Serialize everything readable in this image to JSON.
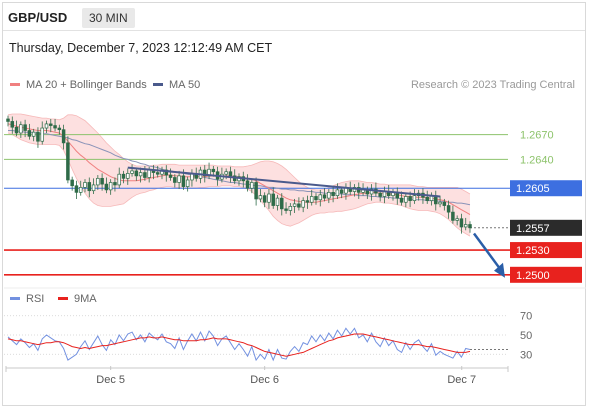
{
  "header": {
    "symbol": "GBP/USD",
    "timeframe": "30 MIN",
    "datetime": "Thursday, December 7, 2023 12:12:49 AM CET",
    "credit": "Research © 2023 Trading Central"
  },
  "colors": {
    "ma20": "#f08080",
    "bands_fill": "#fde0e0",
    "ma50": "#4a5a8c",
    "candle": "#2e6b48",
    "resistance": "#8dc36b",
    "pivot": "#3d6fe0",
    "support": "#e8221e",
    "rsi": "#7391e0",
    "rsi_ma": "#e8221e",
    "arrow": "#2a5ea8"
  },
  "chart_data": [
    {
      "type": "candlestick",
      "legend": [
        {
          "name": "MA 20 + Bollinger Bands",
          "color": "#f08080"
        },
        {
          "name": "MA 50",
          "color": "#4a5a8c"
        }
      ],
      "x_ticks": [
        "Dec 5",
        "Dec 6",
        "Dec 7"
      ],
      "ylim": [
        1.2484,
        1.2712
      ],
      "levels": [
        {
          "value": 1.267,
          "label": "1.2670",
          "kind": "resistance"
        },
        {
          "value": 1.264,
          "label": "1.2640",
          "kind": "resistance"
        },
        {
          "value": 1.2605,
          "label": "1.2605",
          "kind": "pivot"
        },
        {
          "value": 1.2557,
          "label": "1.2557",
          "kind": "last"
        },
        {
          "value": 1.253,
          "label": "1.2530",
          "kind": "support"
        },
        {
          "value": 1.25,
          "label": "1.2500",
          "kind": "support"
        }
      ],
      "close": [
        1.2686,
        1.2679,
        1.2672,
        1.2682,
        1.2675,
        1.2668,
        1.2673,
        1.2662,
        1.2678,
        1.2683,
        1.2681,
        1.2678,
        1.2676,
        1.266,
        1.2615,
        1.2608,
        1.26,
        1.2606,
        1.2612,
        1.2602,
        1.2609,
        1.2617,
        1.261,
        1.2603,
        1.2612,
        1.2609,
        1.2622,
        1.2617,
        1.2623,
        1.2626,
        1.262,
        1.2624,
        1.2618,
        1.2627,
        1.2624,
        1.2622,
        1.2627,
        1.2621,
        1.2618,
        1.2612,
        1.262,
        1.2607,
        1.2615,
        1.2622,
        1.2617,
        1.2627,
        1.262,
        1.2628,
        1.2625,
        1.2616,
        1.2622,
        1.2625,
        1.262,
        1.2614,
        1.2619,
        1.2614,
        1.2605,
        1.2612,
        1.2592,
        1.2596,
        1.2588,
        1.2598,
        1.2584,
        1.2593,
        1.258,
        1.2578,
        1.2583,
        1.2586,
        1.2582,
        1.259,
        1.2588,
        1.2595,
        1.2591,
        1.2597,
        1.2593,
        1.26,
        1.2596,
        1.2603,
        1.2599,
        1.2605,
        1.2601,
        1.2606,
        1.26,
        1.2603,
        1.2598,
        1.2604,
        1.2599,
        1.2595,
        1.2601,
        1.2596,
        1.26,
        1.2593,
        1.2588,
        1.2595,
        1.259,
        1.2596,
        1.2599,
        1.2594,
        1.259,
        1.2596,
        1.2586,
        1.2588,
        1.2584,
        1.2576,
        1.2566,
        1.2568,
        1.2558,
        1.2561,
        1.2557
      ],
      "ma20": [
        1.2683,
        1.2682,
        1.268,
        1.2679,
        1.2678,
        1.2677,
        1.2676,
        1.2675,
        1.2675,
        1.2675,
        1.2674,
        1.2673,
        1.2672,
        1.2668,
        1.2662,
        1.2656,
        1.265,
        1.2645,
        1.2641,
        1.2636,
        1.2632,
        1.2628,
        1.2625,
        1.2622,
        1.2619,
        1.2617,
        1.2615,
        1.2614,
        1.2614,
        1.2614,
        1.2614,
        1.2615,
        1.2616,
        1.2617,
        1.2618,
        1.2619,
        1.262,
        1.2621,
        1.2621,
        1.262,
        1.262,
        1.2619,
        1.2619,
        1.2619,
        1.2619,
        1.2619,
        1.2619,
        1.262,
        1.262,
        1.262,
        1.262,
        1.262,
        1.262,
        1.2619,
        1.2619,
        1.2618,
        1.2617,
        1.2616,
        1.2614,
        1.2611,
        1.2608,
        1.2605,
        1.2602,
        1.2599,
        1.2596,
        1.2593,
        1.2591,
        1.259,
        1.2589,
        1.2588,
        1.2588,
        1.2588,
        1.2588,
        1.2589,
        1.259,
        1.2591,
        1.2592,
        1.2593,
        1.2594,
        1.2595,
        1.2596,
        1.2597,
        1.2598,
        1.2599,
        1.2599,
        1.26,
        1.26,
        1.2599,
        1.2599,
        1.2598,
        1.2598,
        1.2597,
        1.2596,
        1.2595,
        1.2595,
        1.2594,
        1.2594,
        1.2594,
        1.2593,
        1.2593,
        1.2592,
        1.2591,
        1.259,
        1.2588,
        1.2585,
        1.2582,
        1.2579,
        1.2576,
        1.2573
      ],
      "upper_band": [
        1.2694,
        1.2695,
        1.2695,
        1.2695,
        1.2694,
        1.2693,
        1.2692,
        1.2691,
        1.269,
        1.269,
        1.2689,
        1.2689,
        1.2688,
        1.269,
        1.2694,
        1.2694,
        1.2693,
        1.269,
        1.2687,
        1.2682,
        1.2677,
        1.2672,
        1.2666,
        1.266,
        1.2655,
        1.265,
        1.2646,
        1.2641,
        1.2637,
        1.2634,
        1.2632,
        1.2632,
        1.2632,
        1.2632,
        1.2633,
        1.2633,
        1.2634,
        1.2634,
        1.2634,
        1.2634,
        1.2633,
        1.2633,
        1.2633,
        1.2633,
        1.2633,
        1.2633,
        1.2633,
        1.2633,
        1.2633,
        1.2632,
        1.2632,
        1.2632,
        1.2632,
        1.2631,
        1.2631,
        1.2631,
        1.2632,
        1.2633,
        1.2635,
        1.2637,
        1.2638,
        1.2638,
        1.2637,
        1.2635,
        1.2632,
        1.2628,
        1.2623,
        1.2618,
        1.2613,
        1.2609,
        1.2606,
        1.2604,
        1.2603,
        1.2603,
        1.2604,
        1.2606,
        1.2608,
        1.261,
        1.2612,
        1.2613,
        1.2614,
        1.2614,
        1.2614,
        1.2613,
        1.2612,
        1.2612,
        1.2611,
        1.261,
        1.261,
        1.2609,
        1.2609,
        1.2609,
        1.2609,
        1.2609,
        1.2609,
        1.2608,
        1.2607,
        1.2607,
        1.2606,
        1.2606,
        1.2606,
        1.2606,
        1.2606,
        1.2606,
        1.2606,
        1.2606,
        1.2604,
        1.2601,
        1.2598
      ],
      "lower_band": [
        1.2672,
        1.267,
        1.2667,
        1.2664,
        1.2662,
        1.266,
        1.2659,
        1.2658,
        1.2658,
        1.2658,
        1.2658,
        1.2658,
        1.2657,
        1.2651,
        1.264,
        1.2628,
        1.2617,
        1.2608,
        1.2599,
        1.2592,
        1.2587,
        1.2584,
        1.2583,
        1.2583,
        1.2583,
        1.2584,
        1.2585,
        1.2586,
        1.259,
        1.2594,
        1.2597,
        1.2599,
        1.26,
        1.2602,
        1.2603,
        1.2605,
        1.2606,
        1.2607,
        1.2607,
        1.2606,
        1.2606,
        1.2605,
        1.2605,
        1.2605,
        1.2605,
        1.2606,
        1.2606,
        1.2607,
        1.2607,
        1.2607,
        1.2608,
        1.2608,
        1.2608,
        1.2607,
        1.2607,
        1.2606,
        1.2604,
        1.2601,
        1.2596,
        1.259,
        1.2584,
        1.2578,
        1.2571,
        1.2566,
        1.2562,
        1.256,
        1.2559,
        1.2561,
        1.2563,
        1.2566,
        1.2569,
        1.2572,
        1.2574,
        1.2575,
        1.2575,
        1.2576,
        1.2576,
        1.2577,
        1.2577,
        1.2578,
        1.2579,
        1.258,
        1.2582,
        1.2584,
        1.2586,
        1.2587,
        1.2588,
        1.2588,
        1.2587,
        1.2587,
        1.2586,
        1.2585,
        1.2584,
        1.2582,
        1.258,
        1.2579,
        1.2578,
        1.2578,
        1.2578,
        1.2577,
        1.2576,
        1.2574,
        1.2571,
        1.2567,
        1.2562,
        1.2557,
        1.2553,
        1.255,
        1.2547
      ],
      "ma50": [
        1.2675,
        1.2675,
        1.2674,
        1.2674,
        1.2673,
        1.2673,
        1.2672,
        1.2672,
        1.2671,
        1.2671,
        1.267,
        1.2669,
        1.2668,
        1.2667,
        1.2666,
        1.2664,
        1.2663,
        1.2661,
        1.2659,
        1.2658,
        1.2656,
        1.2654,
        1.2652,
        1.265,
        1.2648,
        1.2645,
        1.2643,
        1.2641,
        1.264,
        1.2638,
        1.2637,
        1.2635,
        1.2634,
        1.2632,
        1.2631,
        1.263,
        1.2628,
        1.2627,
        1.2626,
        1.2625,
        1.2624,
        1.2623,
        1.2622,
        1.2621,
        1.262,
        1.2619,
        1.2618,
        1.2617,
        1.2616,
        1.2615,
        1.2614,
        1.2613,
        1.2612,
        1.2612,
        1.2611,
        1.261,
        1.261,
        1.2609,
        1.2608,
        1.2608,
        1.2607,
        1.2606,
        1.2606,
        1.2605,
        1.2604,
        1.2604,
        1.2603,
        1.2603,
        1.2602,
        1.2602,
        1.2601,
        1.2601,
        1.26,
        1.26,
        1.2599,
        1.2599,
        1.2599,
        1.2598,
        1.2598,
        1.2597,
        1.2597,
        1.2597,
        1.2596,
        1.2596,
        1.2596,
        1.2595,
        1.2595,
        1.2594,
        1.2594,
        1.2594,
        1.2593,
        1.2593,
        1.2592,
        1.2592,
        1.2592,
        1.2591,
        1.2591,
        1.2591,
        1.259,
        1.259,
        1.259,
        1.2589,
        1.2589,
        1.2588,
        1.2588,
        1.2587,
        1.2587,
        1.2586,
        1.2585
      ],
      "trendline": {
        "start_index": 28,
        "start_value": 1.263,
        "end_index": 101,
        "end_value": 1.2595
      },
      "projection_arrow": {
        "from_value": 1.2555,
        "to_value": 1.25
      }
    },
    {
      "type": "line",
      "legend": [
        {
          "name": "RSI",
          "color": "#7391e0"
        },
        {
          "name": "9MA",
          "color": "#e8221e"
        }
      ],
      "ylim": [
        22,
        78
      ],
      "y_ticks": [
        70,
        50,
        30
      ],
      "rsi": [
        48,
        44,
        40,
        46,
        42,
        37,
        41,
        34,
        46,
        50,
        47,
        44,
        43,
        36,
        24,
        27,
        30,
        38,
        44,
        35,
        42,
        49,
        40,
        34,
        45,
        40,
        50,
        44,
        51,
        53,
        45,
        50,
        43,
        52,
        48,
        45,
        51,
        43,
        41,
        36,
        47,
        35,
        44,
        51,
        44,
        53,
        44,
        54,
        49,
        39,
        46,
        49,
        42,
        35,
        41,
        35,
        28,
        38,
        24,
        30,
        25,
        35,
        24,
        35,
        26,
        25,
        33,
        38,
        33,
        42,
        40,
        49,
        43,
        50,
        44,
        52,
        46,
        55,
        49,
        57,
        51,
        57,
        47,
        50,
        43,
        52,
        43,
        38,
        47,
        39,
        44,
        35,
        32,
        42,
        35,
        42,
        45,
        38,
        33,
        41,
        29,
        33,
        30,
        28,
        26,
        33,
        27,
        36,
        35
      ],
      "rsi_ma": [
        46,
        45,
        44,
        44,
        43,
        42,
        41,
        40,
        41,
        42,
        42,
        43,
        43,
        42,
        40,
        38,
        37,
        36,
        37,
        36,
        37,
        38,
        39,
        39,
        40,
        41,
        42,
        43,
        44,
        45,
        46,
        47,
        47,
        48,
        47,
        47,
        48,
        47,
        46,
        45,
        45,
        44,
        44,
        44,
        44,
        45,
        45,
        46,
        47,
        46,
        46,
        46,
        45,
        44,
        43,
        42,
        40,
        39,
        37,
        35,
        33,
        32,
        31,
        30,
        29,
        28,
        29,
        30,
        31,
        32,
        34,
        36,
        38,
        40,
        42,
        44,
        45,
        47,
        48,
        49,
        50,
        51,
        51,
        51,
        50,
        49,
        48,
        47,
        46,
        45,
        44,
        43,
        42,
        41,
        40,
        40,
        40,
        39,
        38,
        38,
        37,
        36,
        35,
        34,
        33,
        32,
        32,
        32,
        33
      ]
    }
  ]
}
